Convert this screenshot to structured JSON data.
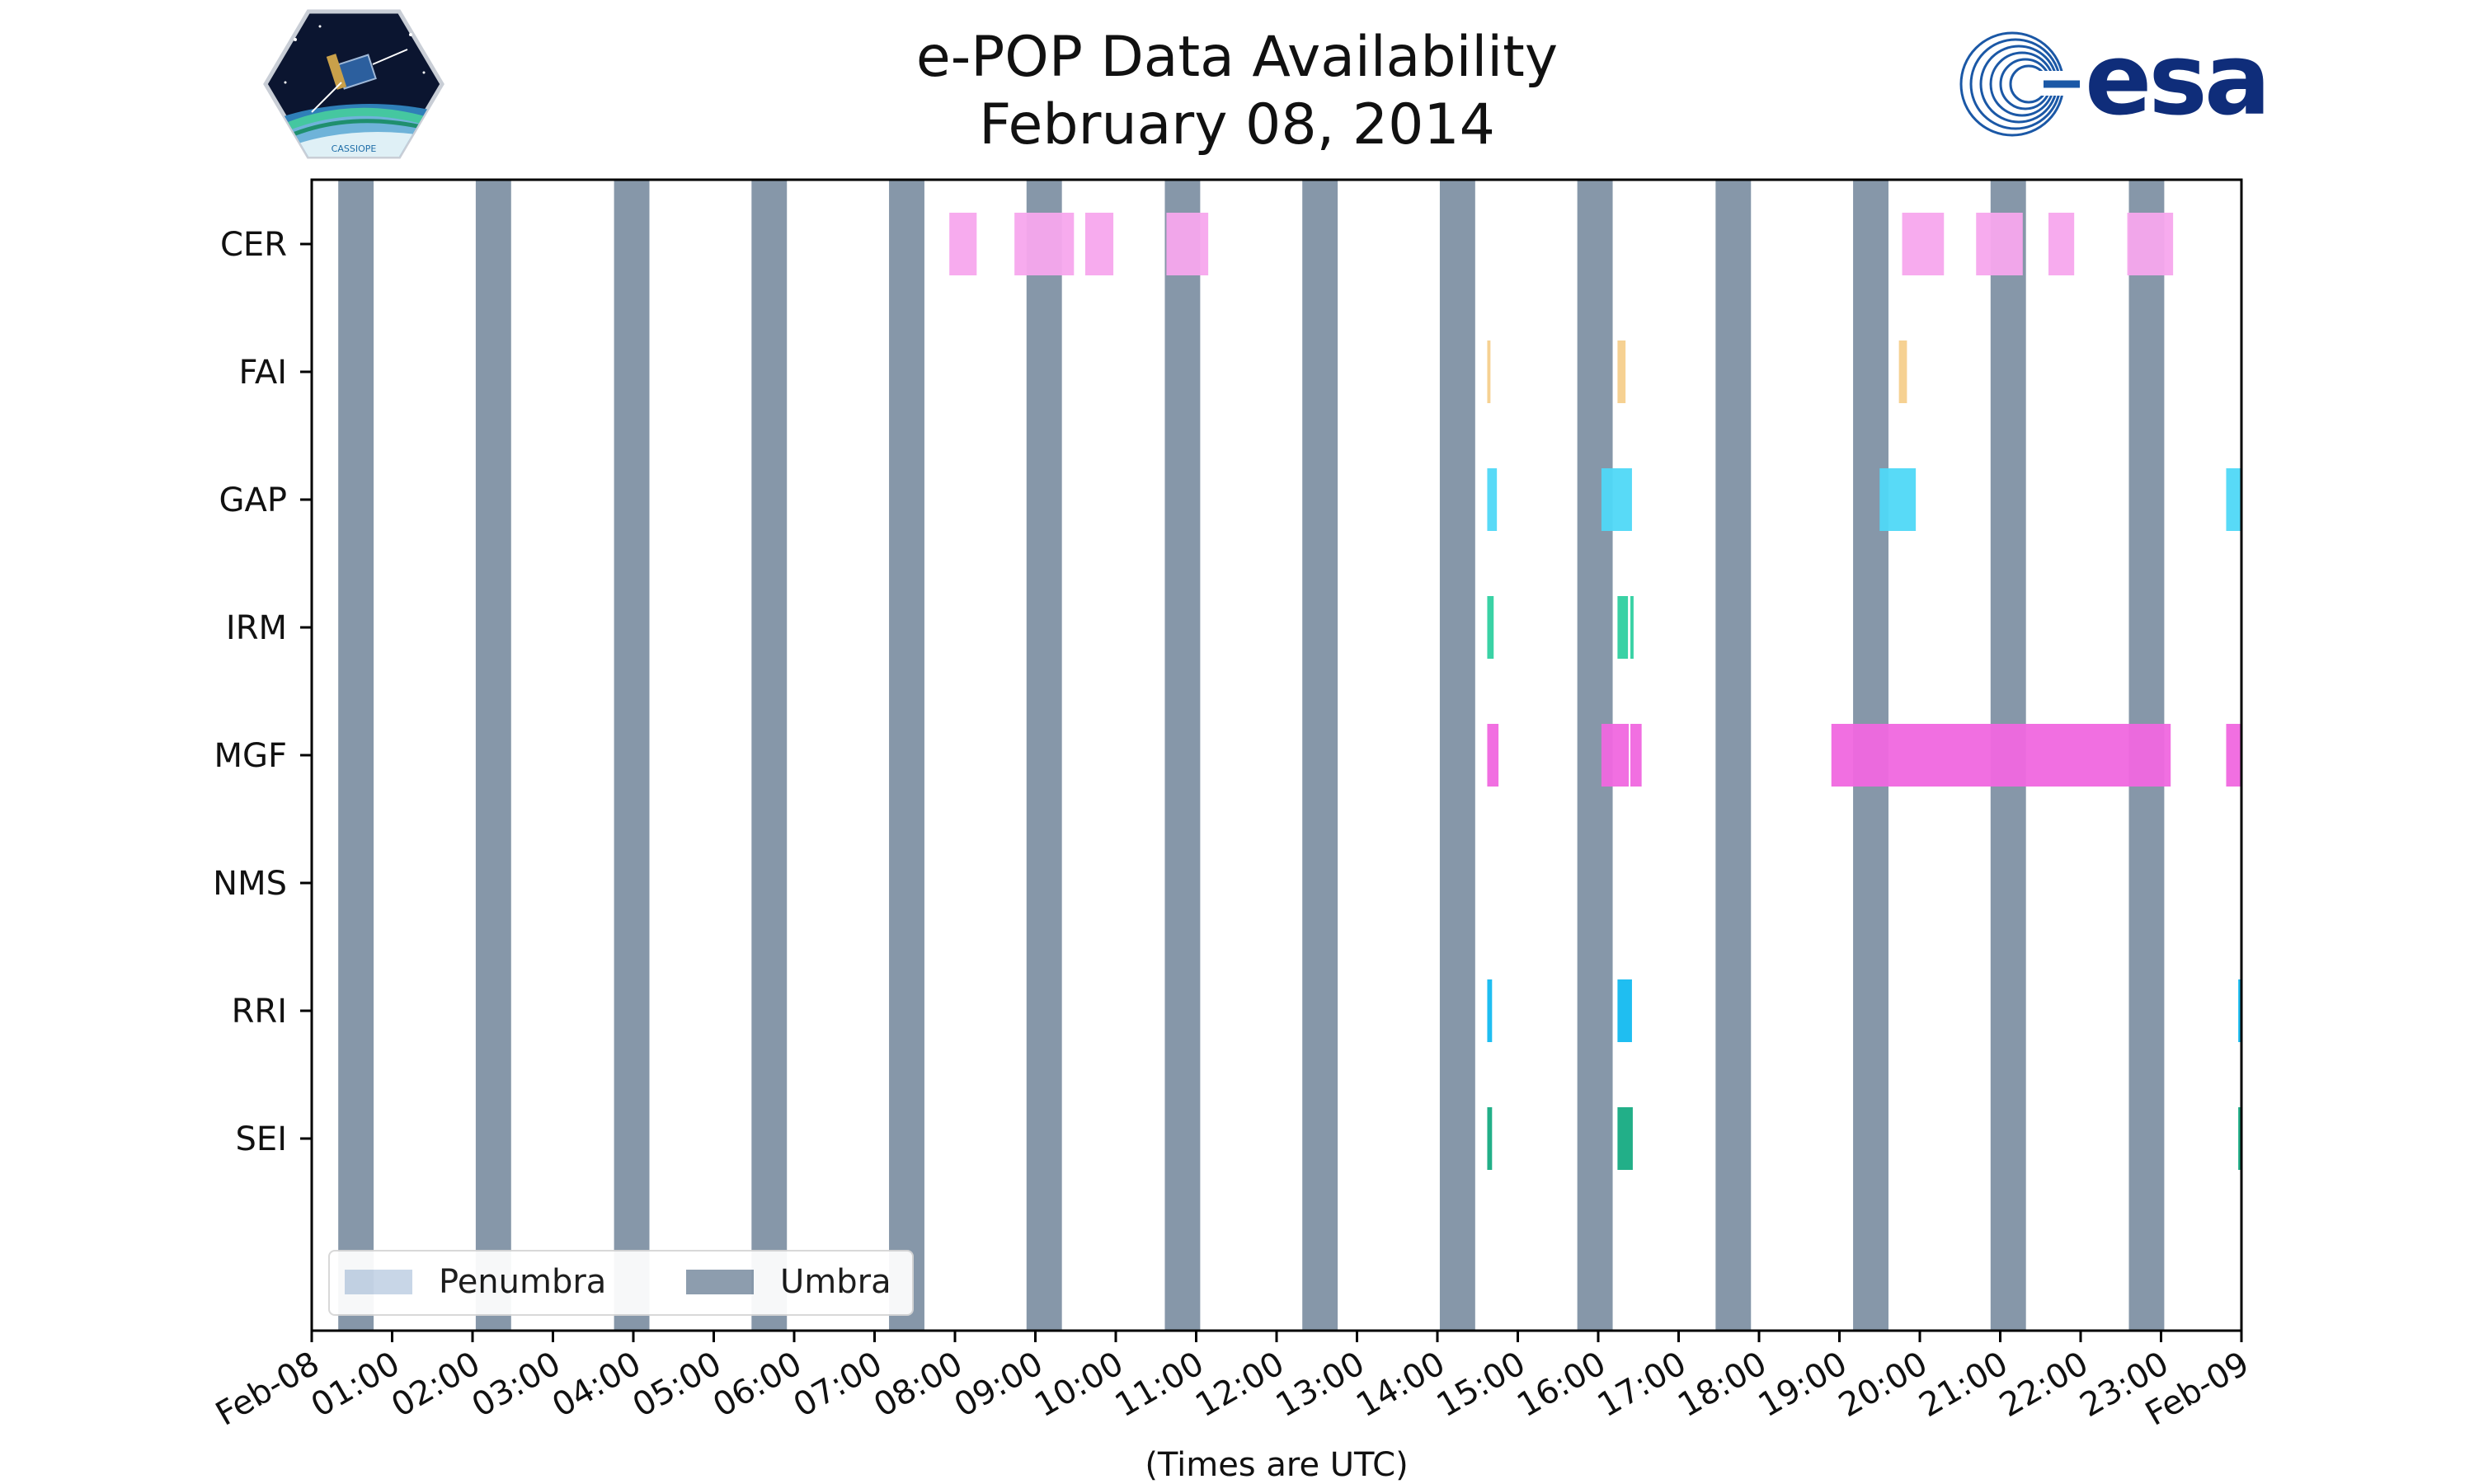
{
  "header": {
    "title_line1": "e-POP Data Availability",
    "title_line2": "February 08, 2014",
    "left_logo_text": "CASSIOPE",
    "right_logo_text": "esa"
  },
  "chart_data": {
    "type": "timeline",
    "title": "e-POP Data Availability",
    "subtitle": "February 08, 2014",
    "xlabel": "(Times are UTC)",
    "ylabel": "",
    "x_unit": "hours UTC",
    "xlim": [
      0,
      24
    ],
    "x_tick_labels": [
      "Feb-08",
      "01:00",
      "02:00",
      "03:00",
      "04:00",
      "05:00",
      "06:00",
      "07:00",
      "08:00",
      "09:00",
      "10:00",
      "11:00",
      "12:00",
      "13:00",
      "14:00",
      "15:00",
      "16:00",
      "17:00",
      "18:00",
      "19:00",
      "20:00",
      "21:00",
      "22:00",
      "23:00",
      "Feb-09"
    ],
    "instruments": [
      "CER",
      "FAI",
      "GAP",
      "IRM",
      "MGF",
      "NMS",
      "RRI",
      "SEI"
    ],
    "legend": [
      {
        "label": "Penumbra",
        "color": "#c5d4e6"
      },
      {
        "label": "Umbra",
        "color": "#8697a9"
      }
    ],
    "legend_position": "lower-left",
    "umbra_intervals": [
      [
        0.33,
        0.77
      ],
      [
        2.04,
        2.48
      ],
      [
        3.76,
        4.2
      ],
      [
        5.47,
        5.91
      ],
      [
        7.18,
        7.62
      ],
      [
        8.89,
        9.33
      ],
      [
        10.61,
        11.05
      ],
      [
        12.32,
        12.76
      ],
      [
        14.03,
        14.47
      ],
      [
        15.74,
        16.18
      ],
      [
        17.46,
        17.9
      ],
      [
        19.17,
        19.61
      ],
      [
        20.88,
        21.32
      ],
      [
        22.6,
        23.04
      ]
    ],
    "availability": [
      {
        "instrument": "CER",
        "color": "#f7a6ed",
        "intervals": [
          [
            7.93,
            8.27
          ],
          [
            8.74,
            9.48
          ],
          [
            9.62,
            9.97
          ],
          [
            10.63,
            11.15
          ],
          [
            19.78,
            20.3
          ],
          [
            20.7,
            21.28
          ],
          [
            21.6,
            21.92
          ],
          [
            22.58,
            23.15
          ]
        ]
      },
      {
        "instrument": "FAI",
        "color": "#f6cf8c",
        "intervals": [
          [
            14.62,
            14.66
          ],
          [
            16.24,
            16.34
          ],
          [
            19.74,
            19.84
          ]
        ]
      },
      {
        "instrument": "GAP",
        "color": "#4fd8f7",
        "intervals": [
          [
            14.62,
            14.74
          ],
          [
            16.04,
            16.42
          ],
          [
            19.5,
            19.95
          ],
          [
            23.81,
            24.0
          ]
        ]
      },
      {
        "instrument": "IRM",
        "color": "#2fd0a0",
        "intervals": [
          [
            14.62,
            14.7
          ],
          [
            16.24,
            16.37
          ],
          [
            16.4,
            16.44
          ]
        ]
      },
      {
        "instrument": "MGF",
        "color": "#f067df",
        "intervals": [
          [
            14.62,
            14.76
          ],
          [
            16.04,
            16.38
          ],
          [
            16.4,
            16.54
          ],
          [
            18.9,
            23.12
          ],
          [
            23.81,
            24.0
          ]
        ]
      },
      {
        "instrument": "NMS",
        "color": "#f067df",
        "intervals": []
      },
      {
        "instrument": "RRI",
        "color": "#13baf0",
        "intervals": [
          [
            14.62,
            14.68
          ],
          [
            16.24,
            16.42
          ],
          [
            23.96,
            24.0
          ]
        ]
      },
      {
        "instrument": "SEI",
        "color": "#16ab82",
        "intervals": [
          [
            14.62,
            14.68
          ],
          [
            16.24,
            16.43
          ],
          [
            23.96,
            24.0
          ]
        ]
      }
    ]
  }
}
